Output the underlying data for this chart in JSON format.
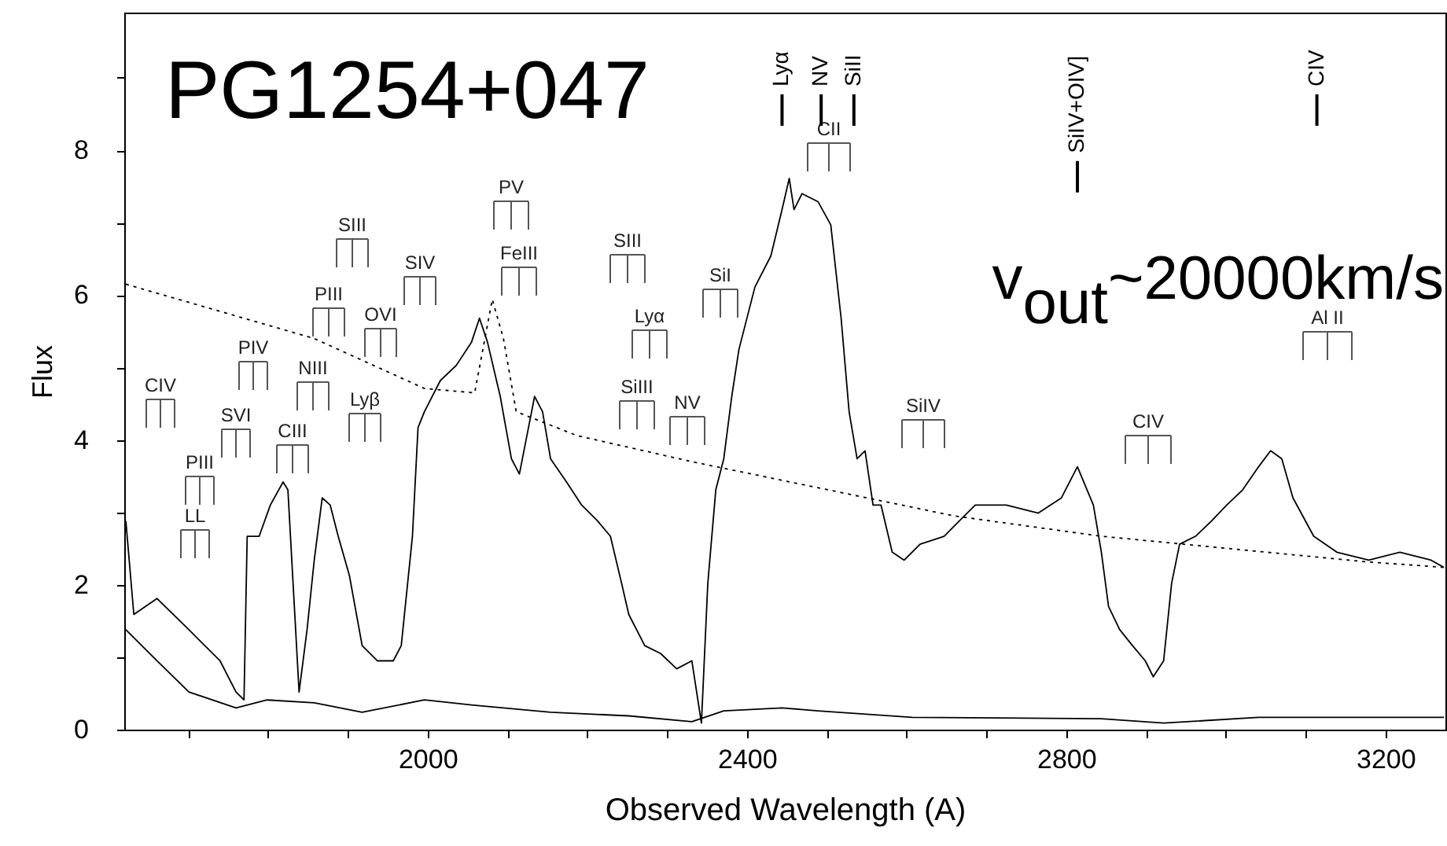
{
  "chart_data": {
    "type": "line",
    "title": "PG1254+047",
    "xlabel": "Observed Wavelength (A)",
    "ylabel": "Flux",
    "xlim": [
      1620,
      3275
    ],
    "ylim": [
      0,
      9.9
    ],
    "xticks": [
      {
        "value": 1700,
        "label": null
      },
      {
        "value": 1800,
        "label": null
      },
      {
        "value": 1900,
        "label": null
      },
      2000,
      {
        "value": 2100,
        "label": null
      },
      {
        "value": 2200,
        "label": null
      },
      {
        "value": 2300,
        "label": null
      },
      2400,
      {
        "value": 2500,
        "label": null
      },
      {
        "value": 2600,
        "label": null
      },
      {
        "value": 2700,
        "label": null
      },
      2800,
      {
        "value": 2900,
        "label": null
      },
      {
        "value": 3000,
        "label": null
      },
      {
        "value": 3100,
        "label": null
      },
      3200
    ],
    "yticks": [
      0,
      {
        "value": 1,
        "label": null
      },
      2,
      {
        "value": 3,
        "label": null
      },
      4,
      {
        "value": 5,
        "label": null
      },
      6,
      {
        "value": 7,
        "label": null
      },
      8,
      {
        "value": 9,
        "label": null
      }
    ],
    "series": [
      {
        "color": "#000000",
        "x": [
          1622,
          1632,
          1661,
          1701,
          1740,
          1760,
          1770,
          1774,
          1789,
          1803,
          1819,
          1825,
          1839,
          1849,
          1858,
          1868,
          1878,
          1888,
          1902,
          1918,
          1937,
          1957,
          1967,
          1981,
          1988,
          1996,
          2016,
          2036,
          2055,
          2065,
          2075,
          2091,
          2105,
          2115,
          2134,
          2144,
          2154,
          2174,
          2193,
          2213,
          2229,
          2243,
          2252,
          2272,
          2292,
          2312,
          2331,
          2343,
          2351,
          2361,
          2371,
          2381,
          2390,
          2410,
          2430,
          2444,
          2453,
          2459,
          2469,
          2489,
          2505,
          2518,
          2528,
          2538,
          2548,
          2558,
          2568,
          2582,
          2597,
          2617,
          2647,
          2666,
          2686,
          2725,
          2765,
          2794,
          2814,
          2834,
          2844,
          2853,
          2867,
          2883,
          2899,
          2909,
          2922,
          2932,
          2942,
          2962,
          2982,
          3001,
          3021,
          3041,
          3056,
          3070,
          3084,
          3110,
          3139,
          3179,
          3218,
          3257,
          3273
        ],
        "values": [
          2.88,
          1.59,
          1.81,
          1.38,
          0.95,
          0.52,
          0.41,
          2.67,
          2.67,
          3.1,
          3.42,
          3.31,
          0.52,
          1.38,
          2.34,
          3.2,
          3.1,
          2.67,
          2.13,
          1.16,
          0.95,
          0.95,
          1.16,
          2.67,
          4.17,
          4.39,
          4.82,
          5.03,
          5.35,
          5.68,
          5.35,
          4.6,
          3.74,
          3.53,
          4.6,
          4.39,
          3.74,
          3.42,
          3.1,
          2.88,
          2.67,
          2.02,
          1.59,
          1.16,
          1.05,
          0.84,
          0.95,
          0.09,
          2.02,
          3.31,
          3.74,
          4.6,
          5.25,
          6.11,
          6.54,
          7.18,
          7.61,
          7.18,
          7.4,
          7.29,
          6.97,
          5.68,
          4.39,
          3.74,
          3.85,
          3.1,
          3.1,
          2.45,
          2.34,
          2.56,
          2.67,
          2.88,
          3.1,
          3.1,
          2.99,
          3.2,
          3.63,
          3.1,
          2.45,
          1.7,
          1.38,
          1.16,
          0.95,
          0.73,
          0.95,
          2.02,
          2.56,
          2.67,
          2.88,
          3.1,
          3.31,
          3.63,
          3.85,
          3.74,
          3.2,
          2.67,
          2.45,
          2.34,
          2.45,
          2.34,
          2.24
        ]
      },
      {
        "color": "#000000",
        "x": [
          1622,
          1661,
          1701,
          1760,
          1799,
          1858,
          1918,
          1996,
          2055,
          2154,
          2252,
          2331,
          2371,
          2444,
          2489,
          2607,
          2844,
          2922,
          3041,
          3273
        ],
        "values": [
          1.38,
          0.95,
          0.52,
          0.3,
          0.41,
          0.37,
          0.24,
          0.41,
          0.34,
          0.24,
          0.19,
          0.11,
          0.26,
          0.3,
          0.26,
          0.17,
          0.15,
          0.09,
          0.17,
          0.17
        ]
      },
      {
        "color": "#000000",
        "line_style": "dotted",
        "x": [
          1622,
          1858,
          1996,
          2059,
          2081,
          2095,
          2111,
          2187,
          2331,
          2660,
          2844,
          3173,
          3273
        ],
        "values": [
          6.15,
          5.4,
          4.71,
          4.65,
          5.94,
          5.4,
          4.39,
          4.06,
          3.7,
          2.95,
          2.67,
          2.32,
          2.24
        ]
      }
    ],
    "annotations": [
      "v$_{out}$~20000km/s",
      "CIV",
      "PIII",
      "LL",
      "PIV",
      "SVI",
      "CIII",
      "NIII",
      "SIII",
      "PIII",
      "OVI",
      "Lyβ",
      "SIV",
      "PV",
      "FeIII",
      "SIII",
      "Lyα",
      "SiIII",
      "NV",
      "SiI",
      "CII",
      "SiIV",
      "CIV",
      "Al II"
    ],
    "ref_lines": [
      {
        "axis": "x",
        "value": 2444,
        "label": "Lyα"
      },
      {
        "axis": "x",
        "value": 2493,
        "label": "NV"
      },
      {
        "axis": "x",
        "value": 2534,
        "label": "SiII"
      },
      {
        "axis": "x",
        "value": 2814,
        "label": "SiIV+OIV]"
      },
      {
        "axis": "x",
        "value": 3114,
        "label": "CIV"
      }
    ]
  }
}
